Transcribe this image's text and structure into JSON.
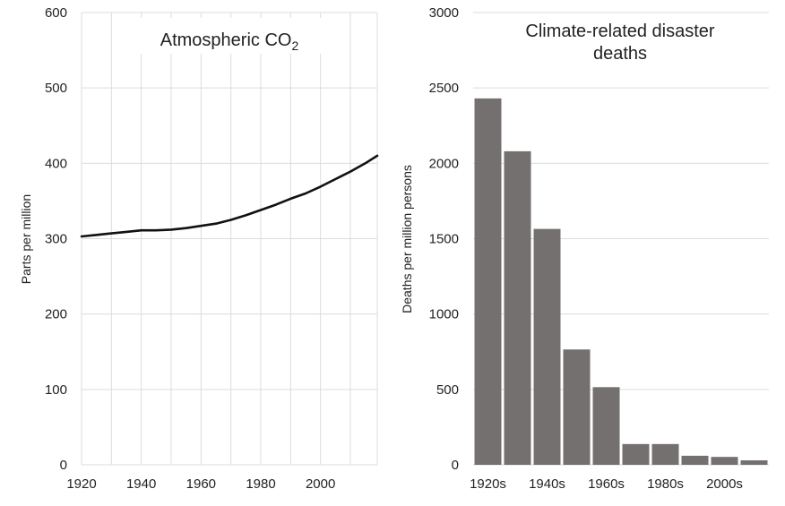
{
  "chart_data": [
    {
      "type": "line",
      "title": "Atmospheric CO",
      "title_subscript": "2",
      "xlabel": "",
      "ylabel": "Parts per million",
      "xlim": [
        1920,
        2019
      ],
      "ylim": [
        0,
        600
      ],
      "x_ticks": [
        1920,
        1940,
        1960,
        1980,
        2000
      ],
      "y_ticks": [
        0,
        100,
        200,
        300,
        400,
        500,
        600
      ],
      "grid": "vertical every 10 years, horizontal every 100",
      "line_color": "#111111",
      "series": [
        {
          "x": [
            1920,
            1925,
            1930,
            1935,
            1940,
            1945,
            1950,
            1955,
            1960,
            1965,
            1970,
            1975,
            1980,
            1985,
            1990,
            1995,
            2000,
            2005,
            2010,
            2015,
            2019
          ],
          "values": [
            303,
            305,
            307,
            309,
            311,
            311,
            312,
            314,
            317,
            320,
            325,
            331,
            338,
            345,
            353,
            360,
            369,
            379,
            389,
            400,
            410
          ]
        }
      ]
    },
    {
      "type": "bar",
      "title": "Climate-related disaster deaths",
      "title_lines": [
        "Climate-related disaster",
        "deaths"
      ],
      "xlabel": "",
      "ylabel": "Deaths per million persons",
      "ylim": [
        0,
        3000
      ],
      "y_ticks": [
        0,
        500,
        1000,
        1500,
        2000,
        2500,
        3000
      ],
      "categories": [
        "1920s",
        "1930s",
        "1940s",
        "1950s",
        "1960s",
        "1970s",
        "1980s",
        "1990s",
        "2000s",
        "2010s"
      ],
      "category_tick_labels": [
        "1920s",
        "1940s",
        "1960s",
        "1980s",
        "2000s"
      ],
      "values": [
        2430,
        2080,
        1565,
        765,
        515,
        138,
        138,
        60,
        52,
        30
      ],
      "bar_color": "#757070",
      "grid": "horizontal every 500"
    }
  ]
}
